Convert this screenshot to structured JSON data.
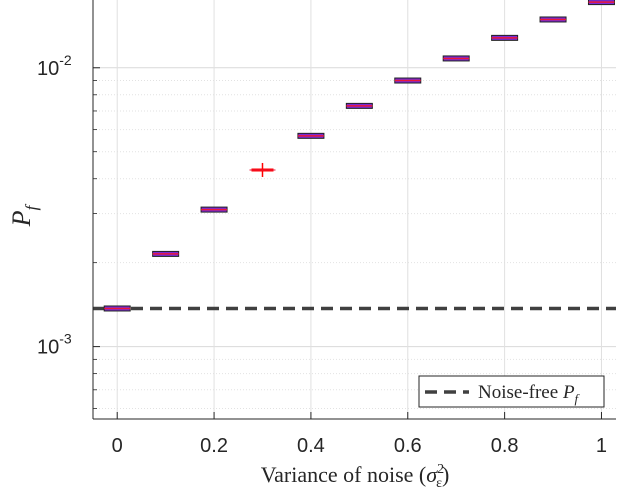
{
  "chart_data": {
    "type": "scatter",
    "plot_style": "boxplot",
    "title": "",
    "xlabel": "Variance of noise",
    "xlabel_math": {
      "symbol": "σ",
      "sup": "2",
      "sub": "ε"
    },
    "ylabel": {
      "main": "P",
      "sub": "f"
    },
    "xlim": [
      -0.05,
      1.03
    ],
    "ylim": [
      0.00055,
      0.0175
    ],
    "y_scale": "log",
    "x_ticks": [
      0,
      0.2,
      0.4,
      0.6,
      0.8,
      1
    ],
    "x_tick_labels": [
      "0",
      "0.2",
      "0.4",
      "0.6",
      "0.8",
      "1"
    ],
    "y_tick_labels": [
      {
        "value": 0.01,
        "base": "10",
        "exp": "-2"
      },
      {
        "value": 0.001,
        "base": "10",
        "exp": "-3"
      }
    ],
    "grid": true,
    "minor_grid": true,
    "x": [
      0,
      0.1,
      0.2,
      0.3,
      0.4,
      0.5,
      0.6,
      0.7,
      0.8,
      0.9,
      1.0
    ],
    "series": [
      {
        "values": [
          0.00137,
          0.00215,
          0.0031,
          0.0043,
          0.0057,
          0.0073,
          0.009,
          0.0108,
          0.0128,
          0.0149,
          0.0172
        ],
        "box_color": "#7a2bd6",
        "median_color": "#e8173a",
        "outlier_index": 3,
        "outlier_color": "#ff0000"
      }
    ],
    "reference_line": {
      "name": "Noise-free",
      "name_math": {
        "main": "P",
        "sub": "f"
      },
      "value": 0.00137,
      "color": "#404040",
      "style": "dashed"
    },
    "legend_position": "bottom-right"
  }
}
